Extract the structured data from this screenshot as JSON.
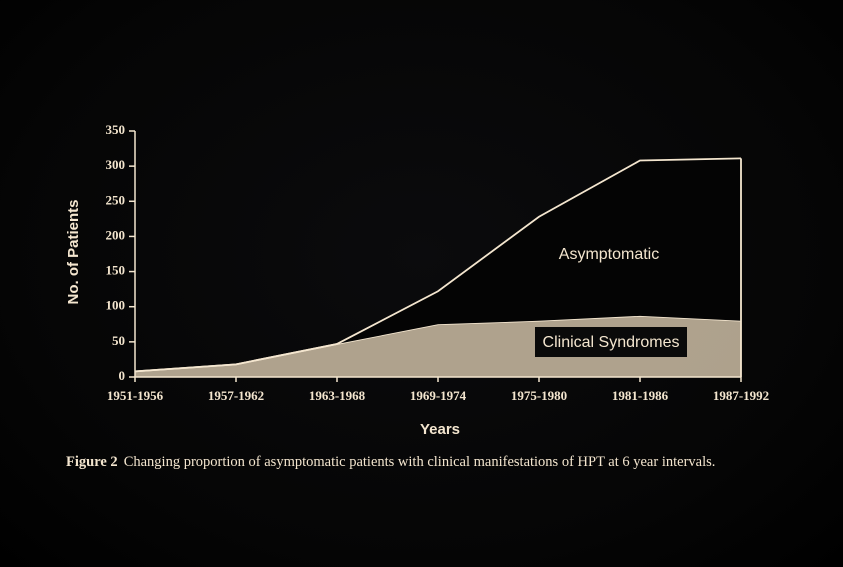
{
  "chart_data": {
    "type": "stacked_area",
    "x_label": "Years",
    "y_label": "No. of Patients",
    "categories": [
      "1951-1956",
      "1957-1962",
      "1963-1968",
      "1969-1974",
      "1975-1980",
      "1981-1986",
      "1987-1992"
    ],
    "series": [
      {
        "name": "Clinical Syndromes",
        "color": "#cdbda4",
        "values": [
          8,
          18,
          47,
          75,
          80,
          87,
          80
        ]
      },
      {
        "name": "Asymptomatic",
        "color": "#040404",
        "values": [
          0,
          0,
          0,
          47,
          148,
          221,
          231
        ]
      }
    ],
    "line_color": "#f4e6cf",
    "ylim": [
      0,
      350
    ],
    "yticks": [
      0,
      50,
      100,
      150,
      200,
      250,
      300,
      350
    ],
    "caption_label": "Figure 2",
    "caption": "Changing proportion of asymptomatic patients with clinical manifestations of HPT at 6 year intervals."
  }
}
